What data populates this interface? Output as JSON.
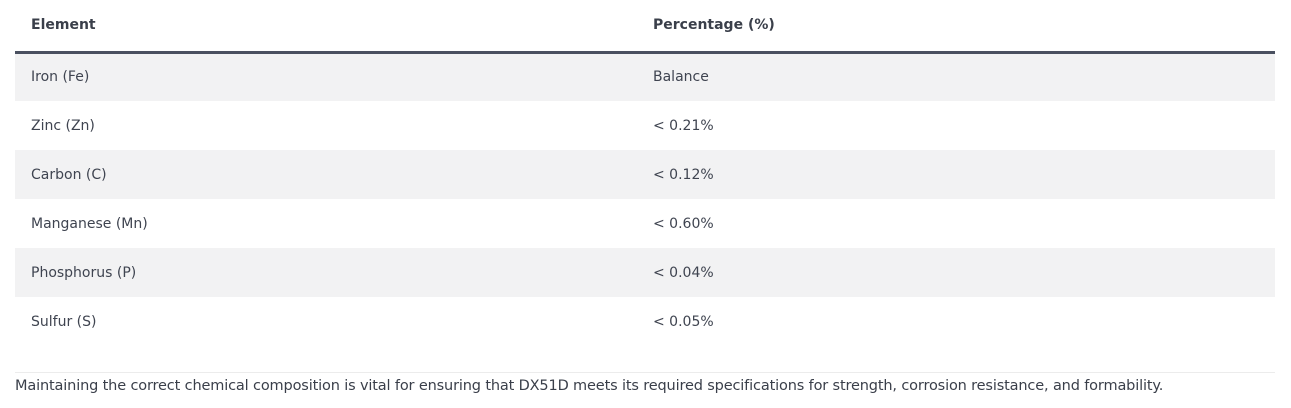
{
  "table": {
    "headers": [
      "Element",
      "Percentage (%)"
    ],
    "rows": [
      [
        "Iron (Fe)",
        "Balance"
      ],
      [
        "Zinc (Zn)",
        "< 0.21%"
      ],
      [
        "Carbon (C)",
        "< 0.12%"
      ],
      [
        "Manganese (Mn)",
        "< 0.60%"
      ],
      [
        "Phosphorus (P)",
        "< 0.04%"
      ],
      [
        "Sulfur (S)",
        "< 0.05%"
      ]
    ]
  },
  "note": "Maintaining the correct chemical composition is vital for ensuring that DX51D meets its required specifications for strength, corrosion resistance, and formability."
}
